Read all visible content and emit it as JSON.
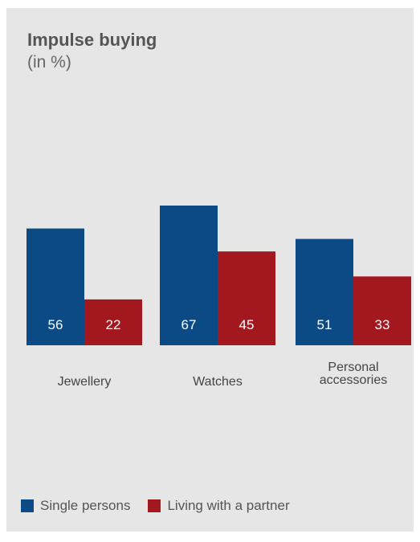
{
  "chart_data": {
    "type": "bar",
    "title": "Impulse buying",
    "subtitle": "(in %)",
    "categories": [
      [
        "Jewellery"
      ],
      [
        "Watches"
      ],
      [
        "Personal",
        "accessories"
      ]
    ],
    "series": [
      {
        "name": "Single persons",
        "values": [
          56,
          67,
          51
        ],
        "color": "#0b4a84"
      },
      {
        "name": "Living with a partner",
        "values": [
          22,
          45,
          33
        ],
        "color": "#a3171f"
      }
    ],
    "ylim": [
      0,
      67
    ],
    "grid": false,
    "legend_position": "bottom-left"
  }
}
